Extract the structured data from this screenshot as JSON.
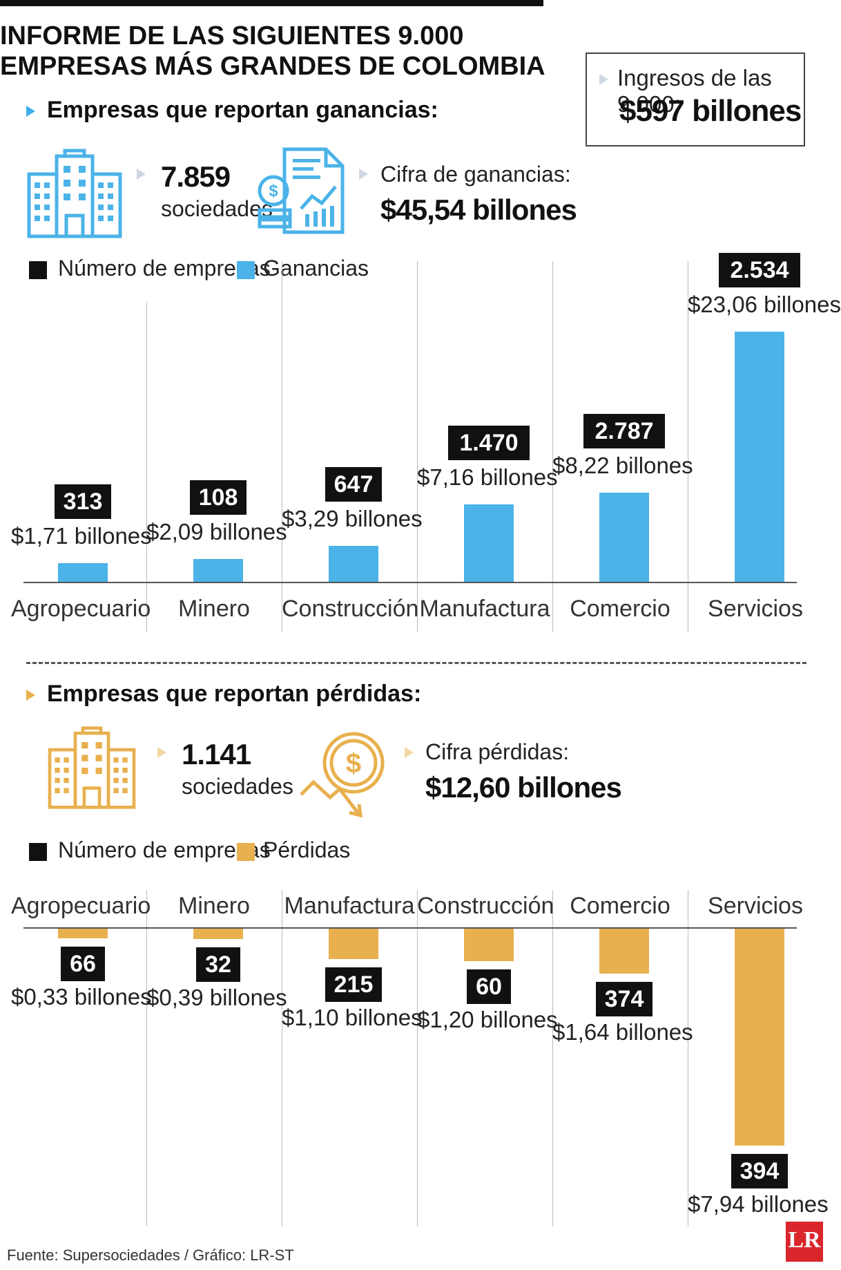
{
  "title_line1": "INFORME DE LAS SIGUIENTES 9.000",
  "title_line2": "EMPRESAS MÁS GRANDES DE COLOMBIA",
  "ingresos": {
    "label": "Ingresos de las 9.000:",
    "value": "$597 billones"
  },
  "ganancias": {
    "section_title": "Empresas que reportan ganancias:",
    "count": "7.859",
    "count_unit": "sociedades",
    "figure_label": "Cifra de ganancias:",
    "figure_value": "$45,54 billones",
    "legend_count": "Número de empresas",
    "legend_value": "Ganancias",
    "bar_color": "#4bb3e8"
  },
  "perdidas": {
    "section_title": "Empresas que reportan pérdidas:",
    "count": "1.141",
    "count_unit": "sociedades",
    "figure_label": "Cifra pérdidas:",
    "figure_value": "$12,60 billones",
    "legend_count": "Número de empresas",
    "legend_value": "Pérdidas",
    "bar_color": "#e8b04e"
  },
  "chart_data": [
    {
      "type": "bar",
      "categories": [
        "Agropecuario",
        "Minero",
        "Construcción",
        "Manufactura",
        "Comercio",
        "Servicios"
      ],
      "series": [
        {
          "name": "Ganancias",
          "values": [
            1.71,
            2.09,
            3.29,
            7.16,
            8.22,
            23.06
          ],
          "labels": [
            "$1,71 billones",
            "$2,09 billones",
            "$3,29 billones",
            "$7,16 billones",
            "$8,22 billones",
            "$23,06 billones"
          ]
        },
        {
          "name": "Número de empresas",
          "values": [
            313,
            108,
            647,
            1470,
            2787,
            2534
          ],
          "labels": [
            "313",
            "108",
            "647",
            "1.470",
            "2.787",
            "2.534"
          ]
        }
      ]
    },
    {
      "type": "bar",
      "categories": [
        "Agropecuario",
        "Minero",
        "Manufactura",
        "Construcción",
        "Comercio",
        "Servicios"
      ],
      "series": [
        {
          "name": "Pérdidas",
          "values": [
            0.33,
            0.39,
            1.1,
            1.2,
            1.64,
            7.94
          ],
          "labels": [
            "$0,33 billones",
            "$0,39 billones",
            "$1,10 billones",
            "$1,20 billones",
            "$1,64 billones",
            "$7,94 billones"
          ]
        },
        {
          "name": "Número de empresas",
          "values": [
            66,
            32,
            215,
            60,
            374,
            394
          ],
          "labels": [
            "66",
            "32",
            "215",
            "60",
            "374",
            "394"
          ]
        }
      ]
    }
  ],
  "source": "Fuente: Supersociedades / Gráfico: LR-ST",
  "logo_text": "LR"
}
